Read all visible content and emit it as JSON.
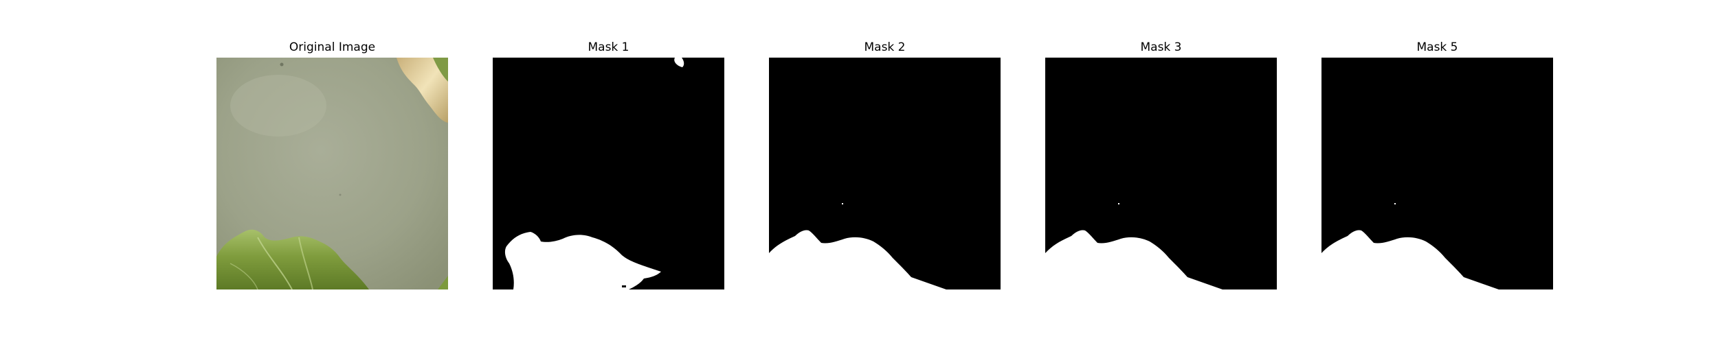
{
  "panels": [
    {
      "title": "Original Image",
      "kind": "photo"
    },
    {
      "title": "Mask 1",
      "kind": "mask"
    },
    {
      "title": "Mask 2",
      "kind": "mask"
    },
    {
      "title": "Mask 3",
      "kind": "mask"
    },
    {
      "title": "Mask 5",
      "kind": "mask"
    }
  ],
  "colors": {
    "mask_background": "#000000",
    "mask_foreground": "#ffffff",
    "photo_surface": "#9ea48c",
    "photo_leaf": "#7c9a3c",
    "photo_highlight": "#e4d3a4"
  }
}
